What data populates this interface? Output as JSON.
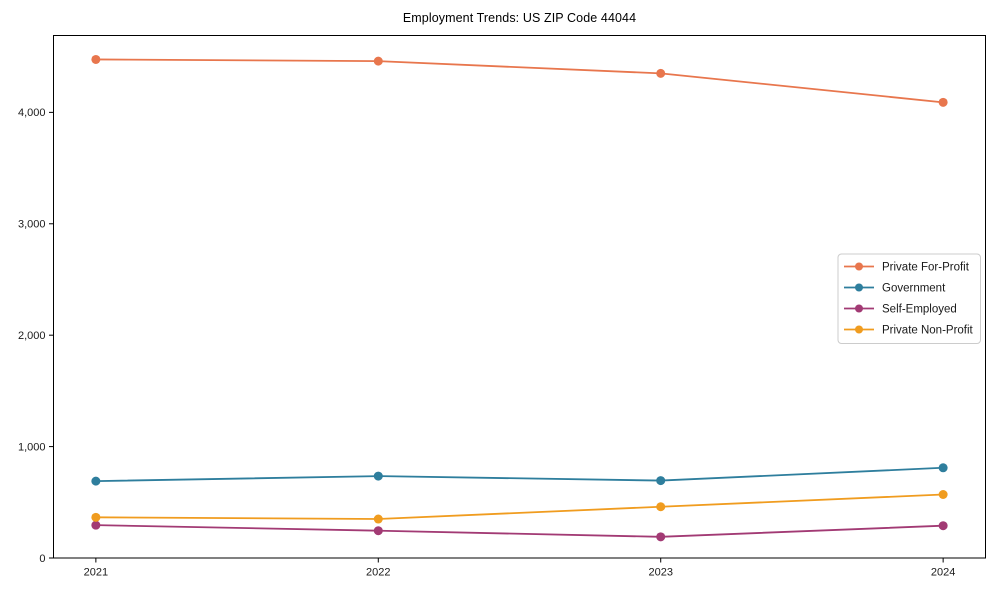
{
  "figure": {
    "background": "#ffffff"
  },
  "chart_data": {
    "type": "line",
    "title": "Employment Trends: US ZIP Code 44044",
    "xlabel": "",
    "ylabel": "",
    "x": [
      2021,
      2022,
      2023,
      2024
    ],
    "x_tick_labels": [
      "2021",
      "2022",
      "2023",
      "2024"
    ],
    "y_ticks": {
      "values": [
        0,
        1000,
        2000,
        3000,
        4000
      ],
      "labels": [
        "0",
        "1,000",
        "2,000",
        "3,000",
        "4,000"
      ]
    },
    "xlim": [
      2020.85,
      2024.15
    ],
    "ylim": [
      0,
      4690
    ],
    "grid": false,
    "axis_color": "#000000",
    "legend": {
      "position": "center-right",
      "background": "#ffffff",
      "border_color": "#cccccc"
    },
    "series": [
      {
        "name": "Private For-Profit",
        "color": "#e8764d",
        "values": [
          4475,
          4460,
          4350,
          4090
        ]
      },
      {
        "name": "Government",
        "color": "#2e7e9d",
        "values": [
          690,
          735,
          695,
          810
        ]
      },
      {
        "name": "Self-Employed",
        "color": "#a23a74",
        "values": [
          295,
          245,
          190,
          290
        ]
      },
      {
        "name": "Private Non-Profit",
        "color": "#f09c1f",
        "values": [
          365,
          350,
          460,
          570
        ]
      }
    ]
  }
}
